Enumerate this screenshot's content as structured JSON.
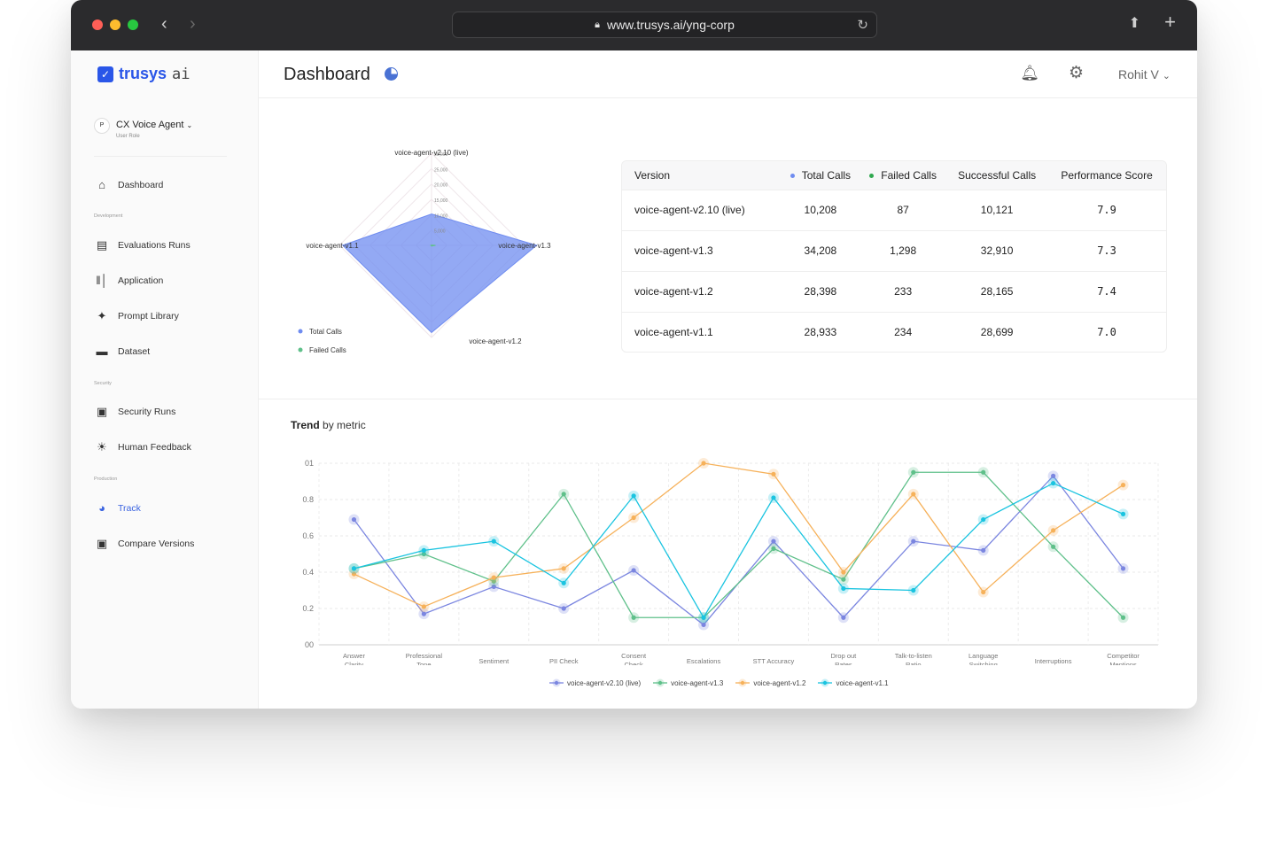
{
  "browser": {
    "url": "www.trusys.ai/yng-corp"
  },
  "brand": {
    "name": "trusys",
    "suffix": "ai"
  },
  "agent": {
    "avatar": "P",
    "name": "CX Voice Agent",
    "role": "User Role"
  },
  "sidebar": {
    "top": [
      {
        "label": "Dashboard",
        "icon": "home-icon"
      }
    ],
    "sections": [
      {
        "title": "Development",
        "items": [
          {
            "label": "Evaluations Runs",
            "icon": "layout-icon"
          },
          {
            "label": "Application",
            "icon": "columns-icon"
          },
          {
            "label": "Prompt Library",
            "icon": "sparkle-icon"
          },
          {
            "label": "Dataset",
            "icon": "ticket-icon"
          }
        ]
      },
      {
        "title": "Security",
        "items": [
          {
            "label": "Security Runs",
            "icon": "report-icon"
          },
          {
            "label": "Human Feedback",
            "icon": "bulb-icon"
          }
        ]
      },
      {
        "title": "Production",
        "items": [
          {
            "label": "Track",
            "icon": "pie-icon",
            "active": true
          },
          {
            "label": "Compare Versions",
            "icon": "report-icon"
          }
        ]
      }
    ]
  },
  "header": {
    "title": "Dashboard",
    "user": "Rohit V"
  },
  "colors": {
    "accent": "#3a63e0",
    "score": "#2fa84f",
    "total_calls": "#6f8cf0",
    "failed_calls": "#5fc08a"
  },
  "stats_table": {
    "columns": [
      "Version",
      "Total Calls",
      "Failed Calls",
      "Successful Calls",
      "Performance Score"
    ],
    "rows": [
      [
        "voice-agent-v2.10 (live)",
        "10,208",
        "87",
        "10,121",
        "7.9"
      ],
      [
        "voice-agent-v1.3",
        "34,208",
        "1,298",
        "32,910",
        "7.3"
      ],
      [
        "voice-agent-v1.2",
        "28,398",
        "233",
        "28,165",
        "7.4"
      ],
      [
        "voice-agent-v1.1",
        "28,933",
        "234",
        "28,699",
        "7.0"
      ]
    ]
  },
  "trend": {
    "title_bold": "Trend",
    "title_rest": "by metric"
  },
  "chart_data": [
    {
      "type": "radar",
      "axes": [
        "voice-agent-v2.10 (live)",
        "voice-agent-v1.3",
        "voice-agent-v1.2",
        "voice-agent-v1.1"
      ],
      "ticks": [
        "5,000",
        "10,000",
        "15,000",
        "20,000",
        "25,000",
        "30,000"
      ],
      "rmax": 30000,
      "series": [
        {
          "name": "Total Calls",
          "values": [
            10208,
            34208,
            28398,
            28933
          ]
        },
        {
          "name": "Failed Calls",
          "values": [
            87,
            1298,
            233,
            234
          ]
        }
      ],
      "legend": "bottom-left"
    },
    {
      "type": "line",
      "categories": [
        "Answer Clarity",
        "Professional Tone",
        "Sentiment",
        "PII Check",
        "Consent Check",
        "Escalations",
        "STT Accuracy",
        "Drop out Rates",
        "Talk-to-listen Ratio",
        "Language Switching",
        "Interruptions",
        "Competitor Mentions"
      ],
      "yticks": [
        "00",
        "0.2",
        "0.4",
        "0.6",
        "0.8",
        "01"
      ],
      "ylim": [
        0,
        1
      ],
      "series": [
        {
          "name": "voice-agent-v2.10 (live)",
          "color": "#7b86e0",
          "values": [
            0.69,
            0.17,
            0.32,
            0.2,
            0.41,
            0.11,
            0.57,
            0.15,
            0.57,
            0.52,
            0.93,
            0.42
          ]
        },
        {
          "name": "voice-agent-v1.3",
          "color": "#5fc08a",
          "values": [
            0.42,
            0.5,
            0.35,
            0.83,
            0.15,
            0.15,
            0.53,
            0.36,
            0.95,
            0.95,
            0.54,
            0.15
          ]
        },
        {
          "name": "voice-agent-v1.2",
          "color": "#f6b15a",
          "values": [
            0.39,
            0.21,
            0.37,
            0.42,
            0.7,
            1.0,
            0.94,
            0.4,
            0.83,
            0.29,
            0.63,
            0.88
          ]
        },
        {
          "name": "voice-agent-v1.1",
          "color": "#1ac4e0",
          "values": [
            0.42,
            0.52,
            0.57,
            0.34,
            0.82,
            0.15,
            0.81,
            0.31,
            0.3,
            0.69,
            0.89,
            0.72
          ]
        }
      ],
      "grid": true,
      "legend": "bottom-center"
    }
  ]
}
